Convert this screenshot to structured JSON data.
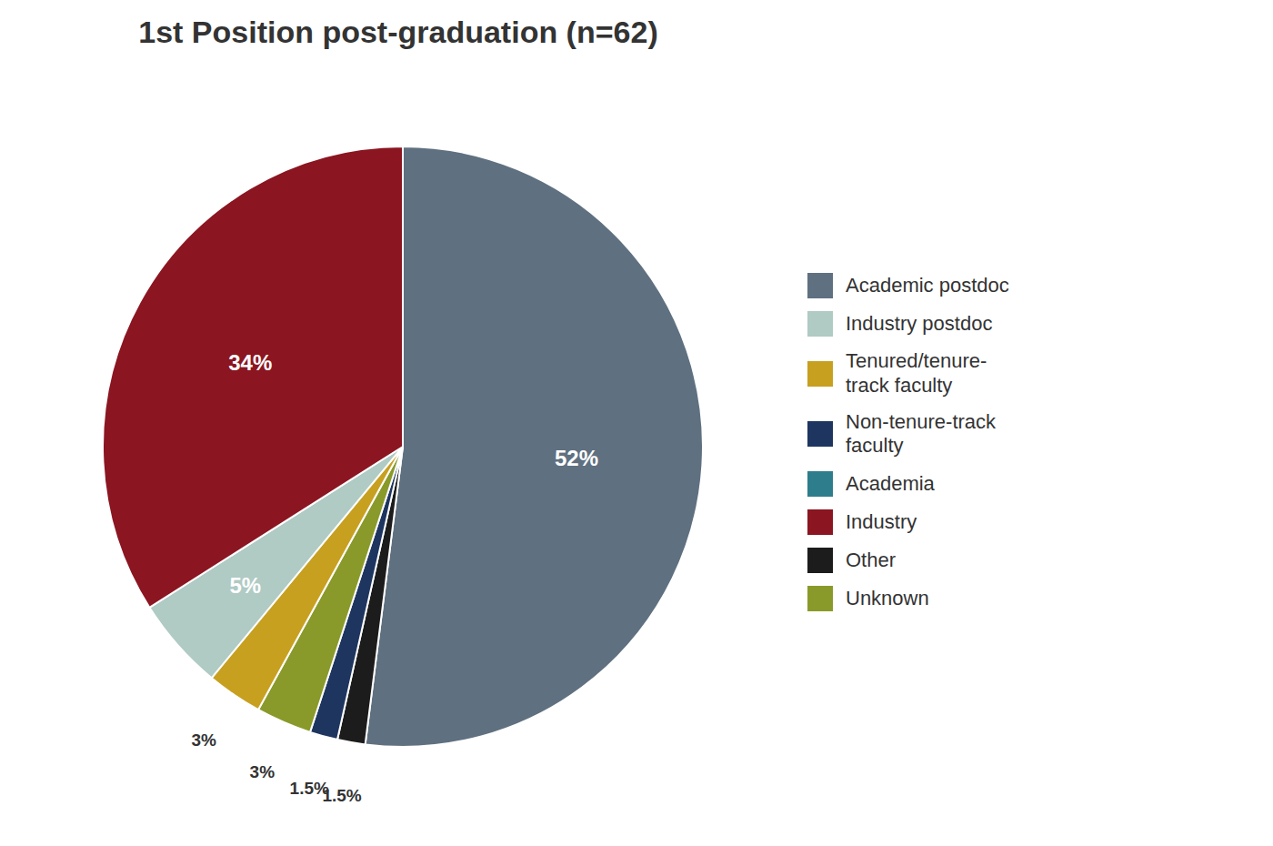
{
  "chart_data": {
    "type": "pie",
    "title": "1st Position post-graduation (n=62)",
    "categories": [
      "Academic postdoc",
      "Other",
      "Non-tenure-track\nfaculty",
      "Unknown",
      "Tenured/tenure-\ntrack faculty",
      "Industry postdoc",
      "Industry"
    ],
    "values": [
      52,
      1.5,
      1.5,
      3,
      3,
      5,
      34
    ],
    "value_labels": [
      "52%",
      "1.5%",
      "1.5%",
      "3%",
      "3%",
      "5%",
      "34%"
    ],
    "colors": [
      "#5f7080",
      "#1c1c1c",
      "#1e3560",
      "#8a9a2a",
      "#c8a020",
      "#b0cac4",
      "#8b1520"
    ],
    "data_labels": true,
    "legend": "right",
    "legend_labels": [
      "Academic postdoc",
      "Industry postdoc",
      "Tenured/tenure-\ntrack faculty",
      "Non-tenure-track\nfaculty",
      "Academia",
      "Industry",
      "Other",
      "Unknown"
    ],
    "legend_colors": [
      "#5f7080",
      "#b0cac4",
      "#c8a020",
      "#1e3560",
      "#2e7d8c",
      "#8b1520",
      "#1c1c1c",
      "#8a9a2a"
    ]
  }
}
